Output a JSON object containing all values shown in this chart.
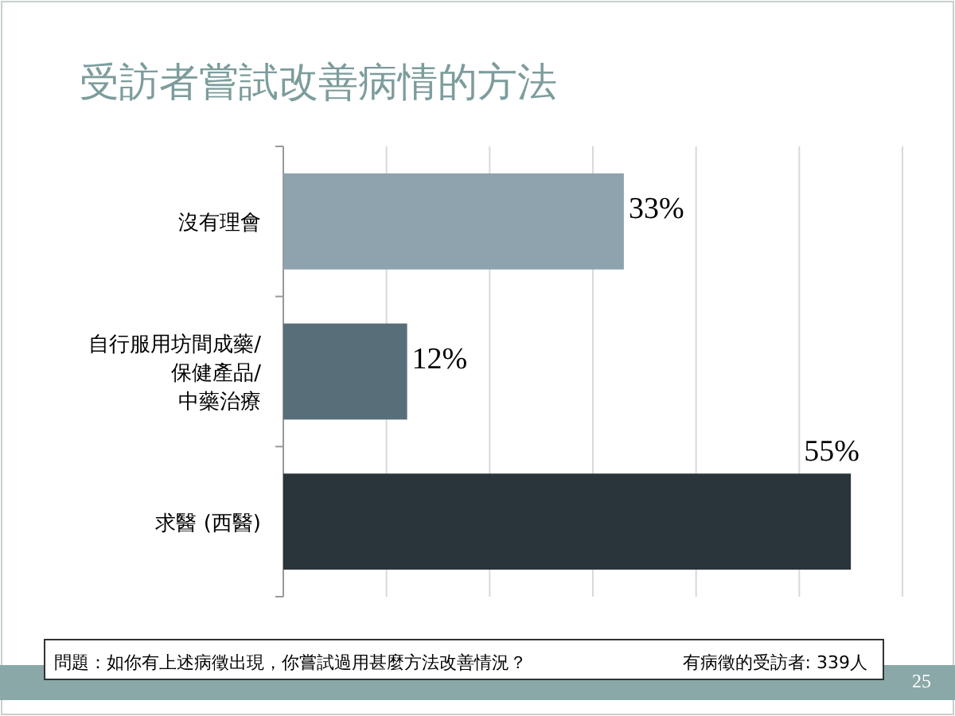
{
  "chart_data": {
    "type": "bar",
    "orientation": "horizontal",
    "title": "受訪者嘗試改善病情的方法",
    "categories": [
      "沒有理會",
      "自行服用坊間成藥/\n保健產品/\n中藥治療",
      "求醫 (西醫)"
    ],
    "values": [
      33,
      12,
      55
    ],
    "colors": [
      "#8fa3ae",
      "#586e79",
      "#2a3539"
    ],
    "value_labels": [
      "33%",
      "12%",
      "55%"
    ],
    "xlim": [
      0,
      60
    ],
    "xticks": [
      {
        "value": 0,
        "label": null
      },
      {
        "value": 10,
        "label": null
      },
      {
        "value": 20,
        "label": null
      },
      {
        "value": 30,
        "label": null
      },
      {
        "value": 40,
        "label": null
      },
      {
        "value": 50,
        "label": null
      },
      {
        "value": 60,
        "label": null
      }
    ],
    "grid": "x",
    "tick_labels": "y",
    "annotations": [
      "問題：如你有上述病徵出現，你嘗試過用甚麼方法改善情況？",
      "有病徵的受訪者: 339人",
      "25"
    ]
  }
}
